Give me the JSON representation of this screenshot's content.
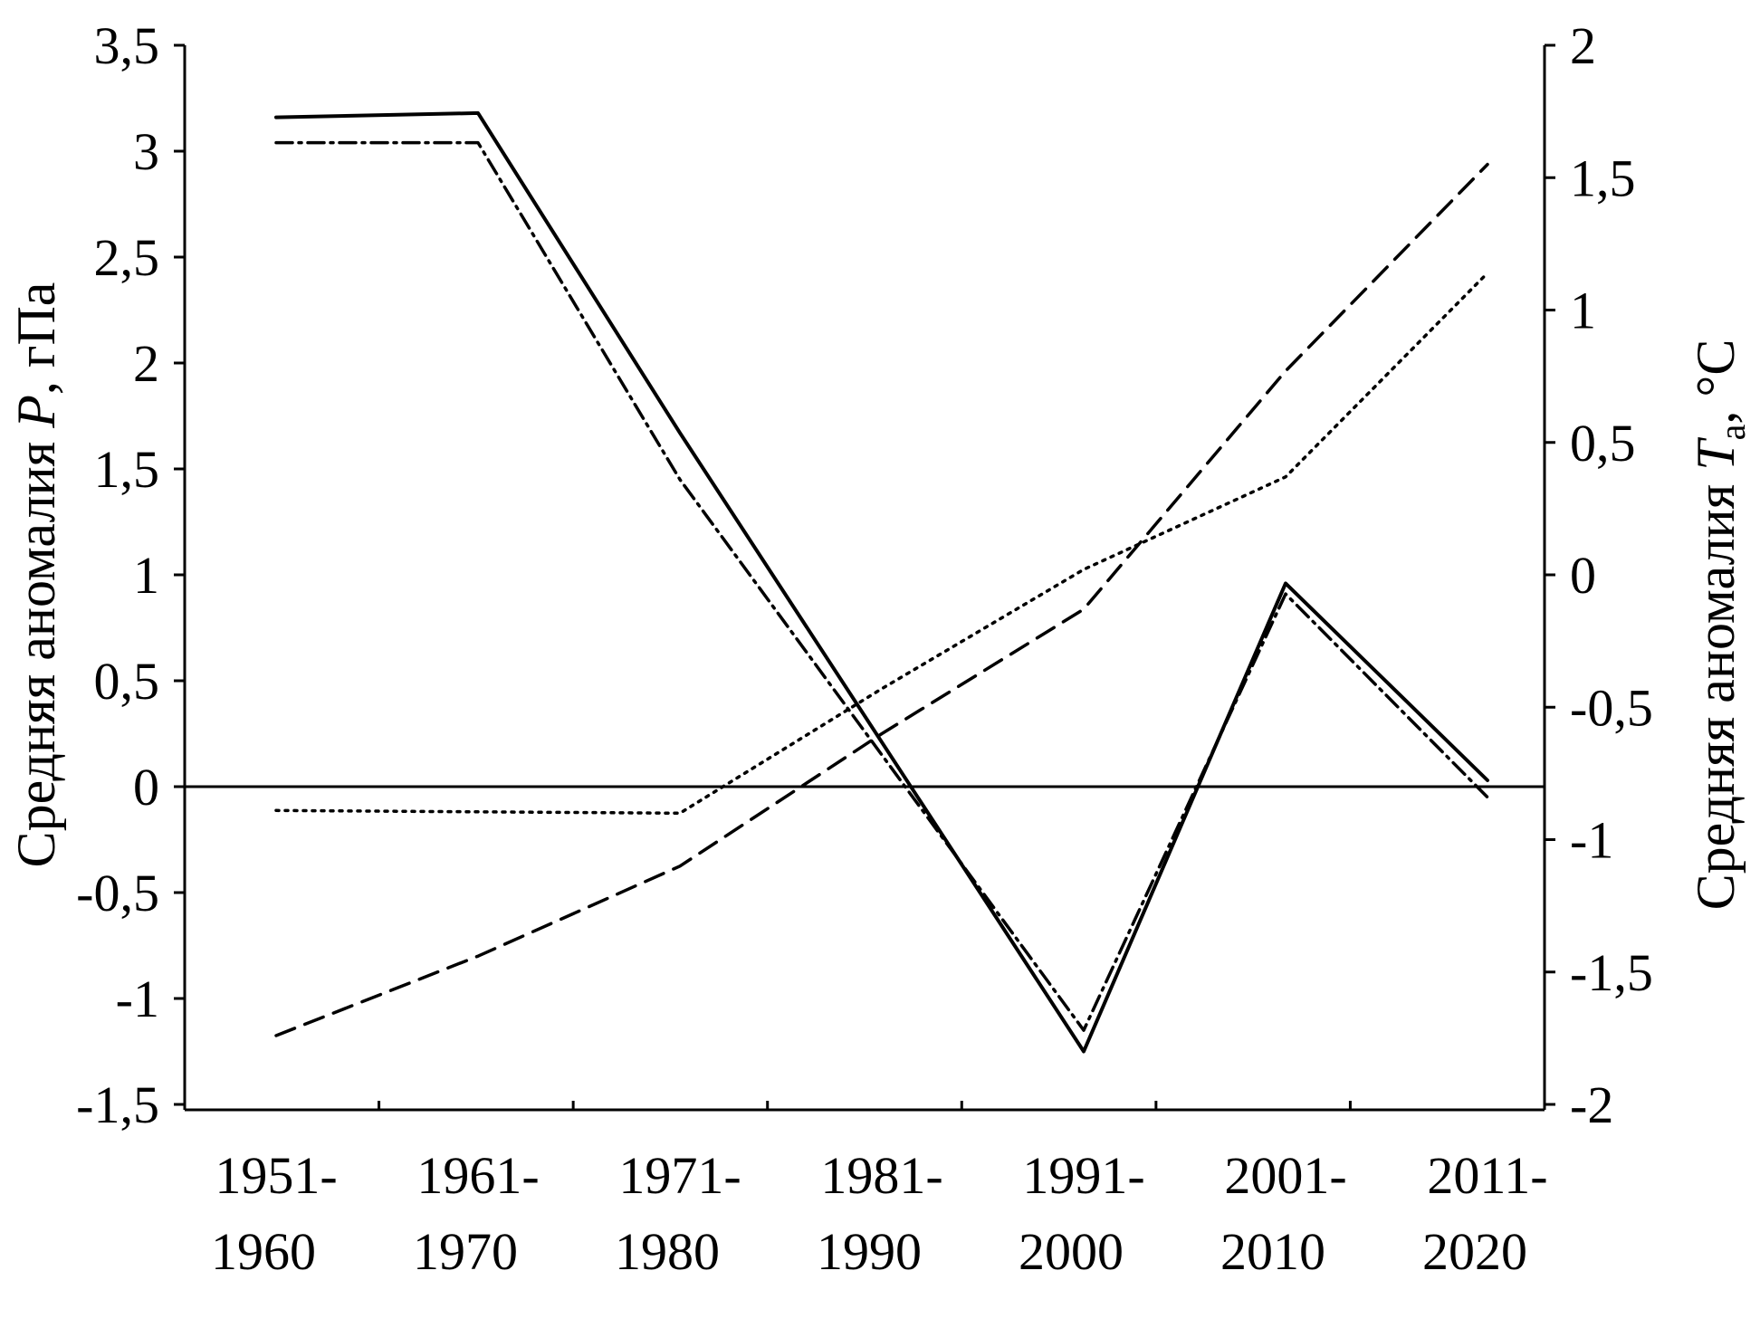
{
  "chart_data": {
    "type": "line",
    "categories": [
      [
        "1951-",
        "1960"
      ],
      [
        "1961-",
        "1970"
      ],
      [
        "1971-",
        "1980"
      ],
      [
        "1981-",
        "1990"
      ],
      [
        "1991-",
        "2000"
      ],
      [
        "2001-",
        "2010"
      ],
      [
        "2011-",
        "2020"
      ]
    ],
    "y_left": {
      "label_prefix": "Средняя аномалия ",
      "label_var": "P",
      "label_suffix": ", гПа",
      "range": [
        -1.5,
        3.5
      ],
      "ticks": [
        "-1,5",
        "-1",
        "-0,5",
        "0",
        "0,5",
        "1",
        "1,5",
        "2",
        "2,5",
        "3",
        "3,5"
      ],
      "tick_values": [
        -1.5,
        -1,
        -0.5,
        0,
        0.5,
        1,
        1.5,
        2,
        2.5,
        3,
        3.5
      ]
    },
    "y_right": {
      "label_prefix": "Средняя аномалия ",
      "label_var": "T",
      "label_sub": "a",
      "label_suffix": ", °С",
      "range": [
        -2,
        2
      ],
      "ticks": [
        "-2",
        "-1,5",
        "-1",
        "-0,5",
        "0",
        "0,5",
        "1",
        "1,5",
        "2"
      ],
      "tick_values": [
        -2,
        -1.5,
        -1,
        -0.5,
        0,
        0.5,
        1,
        1.5,
        2
      ]
    },
    "series": [
      {
        "axis": "left",
        "style": "solid",
        "color": "#000000",
        "x": [
          0,
          1,
          2,
          4,
          5,
          6
        ],
        "y": [
          3.16,
          3.18,
          1.67,
          -1.25,
          0.96,
          0.03
        ]
      },
      {
        "axis": "left",
        "style": "dashdot",
        "color": "#000000",
        "x": [
          0,
          1,
          2,
          4,
          5,
          6
        ],
        "y": [
          3.04,
          3.04,
          1.45,
          -1.15,
          0.91,
          -0.05
        ]
      },
      {
        "axis": "right",
        "style": "dashed",
        "color": "#000000",
        "x": [
          0,
          1,
          2,
          3,
          4,
          5,
          6
        ],
        "y": [
          -1.74,
          -1.44,
          -1.1,
          -0.6,
          -0.13,
          0.77,
          1.55
        ]
      },
      {
        "axis": "right",
        "style": "dotted",
        "color": "#000000",
        "x": [
          0,
          2,
          3,
          4,
          5,
          6
        ],
        "y": [
          -0.89,
          -0.9,
          -0.43,
          0.02,
          0.37,
          1.14
        ]
      }
    ],
    "zero_line": true,
    "grid": false,
    "legend": "none"
  }
}
